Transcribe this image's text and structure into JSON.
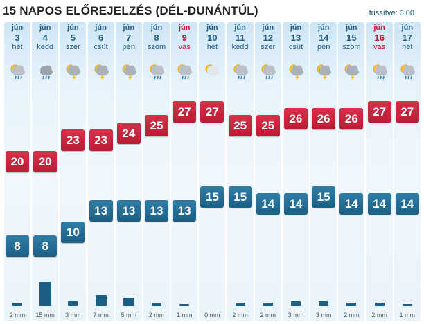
{
  "header": {
    "title": "15 NAPOS ELŐREJELZÉS (DÉL-DUNÁNTÚL)",
    "updated": "frissítve: 0:00"
  },
  "colors": {
    "high": "#c4223b",
    "low": "#23688f",
    "sunday": "#c8102e",
    "text": "#1e5e86"
  },
  "temperature_scale_c": [
    8,
    27
  ],
  "precip_scale_mm": [
    0,
    15
  ],
  "days": [
    {
      "month": "jún",
      "day": "3",
      "weekday": "hét",
      "sunday": false,
      "icon": "rain-sun-icon",
      "high": "20",
      "low": "8",
      "precip": "2 mm",
      "precip_mm": 2
    },
    {
      "month": "jún",
      "day": "4",
      "weekday": "kedd",
      "sunday": false,
      "icon": "rain-cloud-icon",
      "high": "20",
      "low": "8",
      "precip": "15 mm",
      "precip_mm": 15
    },
    {
      "month": "jún",
      "day": "5",
      "weekday": "szer",
      "sunday": false,
      "icon": "storm-sun-icon",
      "high": "23",
      "low": "10",
      "precip": "3 mm",
      "precip_mm": 3
    },
    {
      "month": "jún",
      "day": "6",
      "weekday": "csüt",
      "sunday": false,
      "icon": "storm-sun-icon",
      "high": "23",
      "low": "13",
      "precip": "7 mm",
      "precip_mm": 7
    },
    {
      "month": "jún",
      "day": "7",
      "weekday": "pén",
      "sunday": false,
      "icon": "storm-sun-icon",
      "high": "24",
      "low": "13",
      "precip": "5 mm",
      "precip_mm": 5
    },
    {
      "month": "jún",
      "day": "8",
      "weekday": "szom",
      "sunday": false,
      "icon": "rain-sun-icon",
      "high": "25",
      "low": "13",
      "precip": "2 mm",
      "precip_mm": 2
    },
    {
      "month": "jún",
      "day": "9",
      "weekday": "vas",
      "sunday": true,
      "icon": "rain-sun-icon",
      "high": "27",
      "low": "13",
      "precip": "1 mm",
      "precip_mm": 1
    },
    {
      "month": "jún",
      "day": "10",
      "weekday": "hét",
      "sunday": false,
      "icon": "sun-cloud-icon",
      "high": "27",
      "low": "15",
      "precip": "0 mm",
      "precip_mm": 0
    },
    {
      "month": "jún",
      "day": "11",
      "weekday": "kedd",
      "sunday": false,
      "icon": "rain-sun-icon",
      "high": "25",
      "low": "15",
      "precip": "2 mm",
      "precip_mm": 2
    },
    {
      "month": "jún",
      "day": "12",
      "weekday": "szer",
      "sunday": false,
      "icon": "rain-sun-icon",
      "high": "25",
      "low": "14",
      "precip": "2 mm",
      "precip_mm": 2
    },
    {
      "month": "jún",
      "day": "13",
      "weekday": "csüt",
      "sunday": false,
      "icon": "storm-sun-icon",
      "high": "26",
      "low": "14",
      "precip": "3 mm",
      "precip_mm": 3
    },
    {
      "month": "jún",
      "day": "14",
      "weekday": "pén",
      "sunday": false,
      "icon": "storm-sun-icon",
      "high": "26",
      "low": "15",
      "precip": "3 mm",
      "precip_mm": 3
    },
    {
      "month": "jún",
      "day": "15",
      "weekday": "szom",
      "sunday": false,
      "icon": "storm-sun-icon",
      "high": "26",
      "low": "14",
      "precip": "2 mm",
      "precip_mm": 2
    },
    {
      "month": "jún",
      "day": "16",
      "weekday": "vas",
      "sunday": true,
      "icon": "rain-sun-icon",
      "high": "27",
      "low": "14",
      "precip": "2 mm",
      "precip_mm": 2
    },
    {
      "month": "jún",
      "day": "17",
      "weekday": "hét",
      "sunday": false,
      "icon": "rain-sun-icon",
      "high": "27",
      "low": "14",
      "precip": "1 mm",
      "precip_mm": 1
    }
  ]
}
